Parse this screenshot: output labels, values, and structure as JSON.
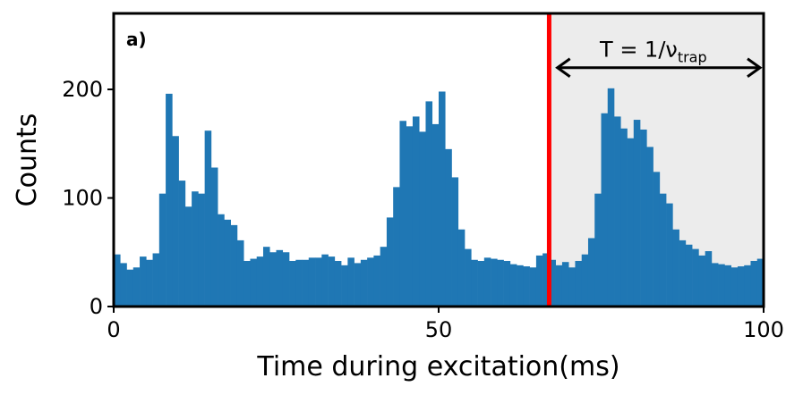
{
  "chart_data": {
    "type": "bar",
    "panel_label": "a)",
    "xlabel": "Time during excitation(ms)",
    "ylabel": "Counts",
    "xlim": [
      0,
      100
    ],
    "ylim": [
      0,
      270
    ],
    "xticks": [
      0,
      50,
      100
    ],
    "yticks": [
      0,
      100,
      200
    ],
    "bin_width": 1,
    "bar_color": "#1f77b4",
    "values": [
      48,
      40,
      34,
      36,
      46,
      43,
      49,
      104,
      196,
      157,
      116,
      92,
      106,
      104,
      162,
      128,
      85,
      80,
      75,
      61,
      42,
      44,
      46,
      55,
      50,
      52,
      50,
      42,
      43,
      43,
      45,
      45,
      48,
      46,
      42,
      38,
      45,
      40,
      43,
      45,
      47,
      55,
      82,
      110,
      171,
      166,
      175,
      161,
      189,
      168,
      198,
      145,
      119,
      71,
      53,
      43,
      42,
      45,
      44,
      43,
      42,
      39,
      38,
      37,
      36,
      47,
      49,
      43,
      38,
      41,
      36,
      42,
      48,
      63,
      104,
      178,
      201,
      175,
      164,
      155,
      172,
      163,
      147,
      124,
      104,
      95,
      71,
      61,
      57,
      53,
      47,
      51,
      40,
      39,
      38,
      36,
      37,
      38,
      42,
      44
    ],
    "marker_line": {
      "x": 67,
      "color": "#ff0000"
    },
    "shaded_region": {
      "x_start": 67,
      "x_end": 100,
      "color": "#ececec"
    },
    "annotation": {
      "text": "T = 1/ν",
      "subscript": "trap",
      "x_start": 68,
      "x_end": 100,
      "y": 220
    }
  }
}
